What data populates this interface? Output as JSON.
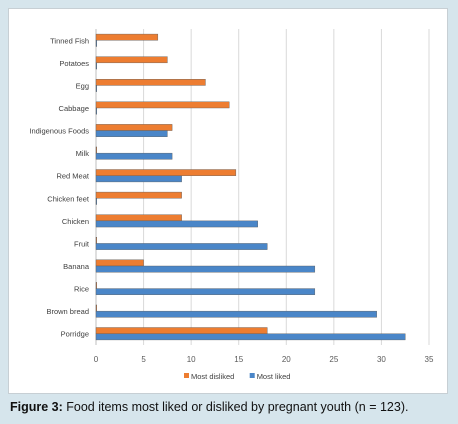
{
  "chart_data": {
    "type": "bar",
    "orientation": "horizontal",
    "categories": [
      "Tinned Fish",
      "Potatoes",
      "Egg",
      "Cabbage",
      "Indigenous Foods",
      "Milk",
      "Red Meat",
      "Chicken feet",
      "Chicken",
      "Fruit",
      "Banana",
      "Rice",
      "Brown bread",
      "Porridge"
    ],
    "series": [
      {
        "name": "Most disliked",
        "color": "#ed7d31",
        "values": [
          6.5,
          7.5,
          11.5,
          14,
          8,
          0,
          14.7,
          9,
          9,
          0,
          5,
          0,
          0,
          18
        ]
      },
      {
        "name": "Most liked",
        "color": "#4a86c8",
        "values": [
          0,
          0,
          0,
          0,
          7.5,
          8,
          9,
          0,
          17,
          18,
          23,
          23,
          29.5,
          32.5
        ]
      }
    ],
    "xlim": [
      0,
      35
    ],
    "xticks": [
      "0",
      "5",
      "10",
      "15",
      "20",
      "25",
      "30",
      "35"
    ],
    "grid": true,
    "legend_position": "bottom"
  },
  "caption": {
    "label": "Figure 3:",
    "text": " Food items most liked or disliked by pregnant youth (n = 123)."
  }
}
